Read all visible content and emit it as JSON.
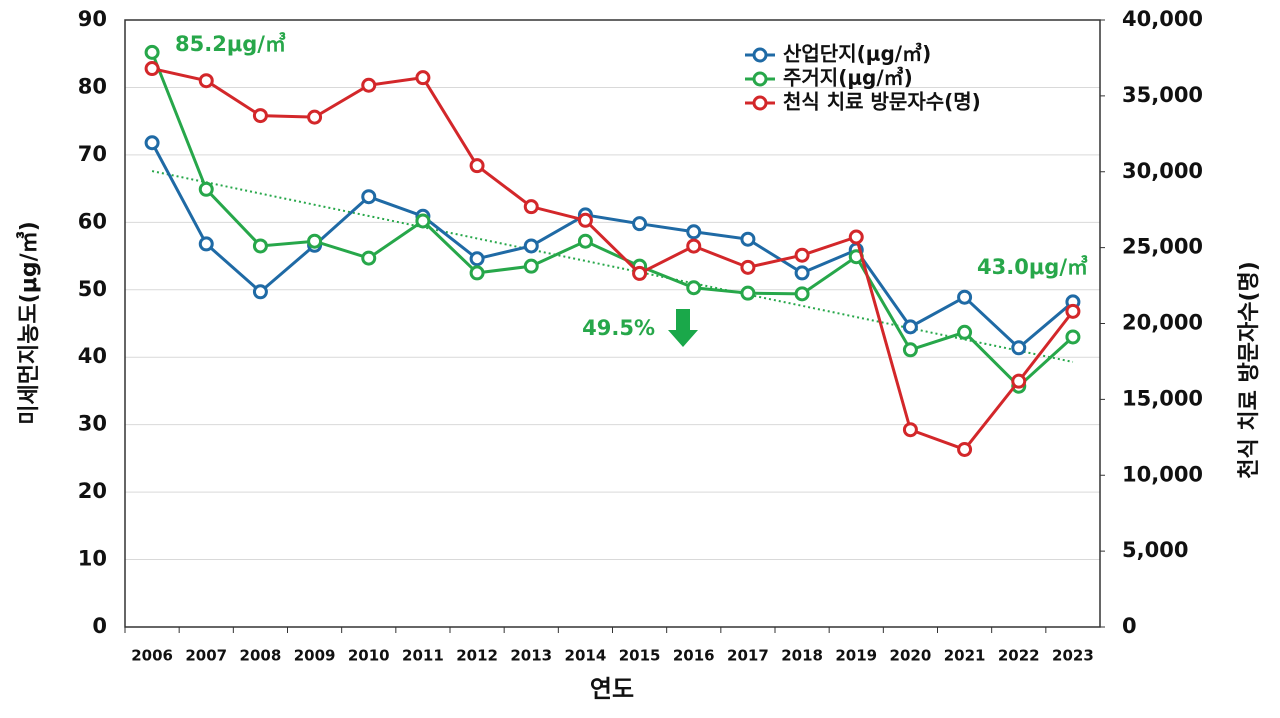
{
  "chart_data": {
    "type": "line",
    "x_label": "연도",
    "y_label": "미세먼지농도(μg/㎥)",
    "y2_label": "천식 치료 방문자수(명)",
    "categories": [
      "2006",
      "2007",
      "2008",
      "2009",
      "2010",
      "2011",
      "2012",
      "2013",
      "2014",
      "2015",
      "2016",
      "2017",
      "2018",
      "2019",
      "2020",
      "2021",
      "2022",
      "2023"
    ],
    "series": [
      {
        "name": "산업단지(μg/㎥)",
        "color": "#1f6aa5",
        "values": [
          71.8,
          56.8,
          49.7,
          56.6,
          63.8,
          60.9,
          54.6,
          56.5,
          61.1,
          59.8,
          58.6,
          57.5,
          52.5,
          55.9,
          44.5,
          48.9,
          41.4,
          48.2
        ]
      },
      {
        "name": "주거지(μg/㎥)",
        "color": "#27a74a",
        "values": [
          85.2,
          64.9,
          56.5,
          57.2,
          54.7,
          60.2,
          52.5,
          53.5,
          57.2,
          53.5,
          50.3,
          49.5,
          49.4,
          54.9,
          41.1,
          43.7,
          35.7,
          43.0
        ]
      },
      {
        "name": "천식 치료 방문자수(명)",
        "color": "#d3272a",
        "axis": "y2",
        "values": [
          36800,
          36000,
          33700,
          33600,
          35700,
          36200,
          30400,
          27700,
          26800,
          23300,
          25100,
          23700,
          24500,
          25700,
          13000,
          11700,
          16200,
          20800
        ]
      }
    ],
    "trend": {
      "color": "#27a74a",
      "values": [
        67.6,
        39.3
      ]
    },
    "annotations": [
      {
        "text": "85.2μg/㎥",
        "color": "#27a74a"
      },
      {
        "text": "43.0μg/㎥",
        "color": "#27a74a"
      },
      {
        "text": "49.5%",
        "color": "#27a74a"
      }
    ],
    "ylim": [
      0,
      90
    ],
    "yticks": [
      0,
      10,
      20,
      30,
      40,
      50,
      60,
      70,
      80,
      90
    ],
    "y2lim": [
      0,
      40000
    ],
    "y2ticks": [
      0,
      {
        "value": 5000,
        "label": "5,000"
      },
      {
        "value": 10000,
        "label": "10,000"
      },
      {
        "value": 15000,
        "label": "15,000"
      },
      {
        "value": 20000,
        "label": "20,000"
      },
      {
        "value": 25000,
        "label": "25,000"
      },
      {
        "value": 30000,
        "label": "30,000"
      },
      {
        "value": 35000,
        "label": "35,000"
      },
      {
        "value": 40000,
        "label": "40,000"
      }
    ],
    "grid": true,
    "legend": "upper right"
  }
}
